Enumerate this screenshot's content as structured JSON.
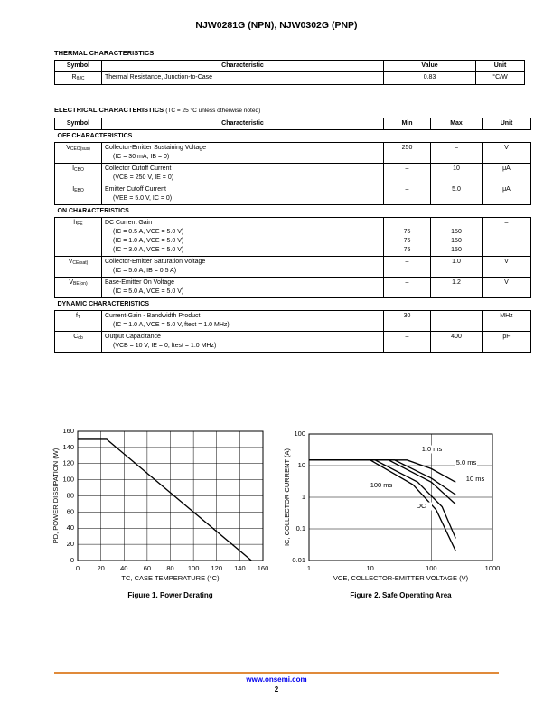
{
  "header": {
    "title": "NJW0281G (NPN), NJW0302G (PNP)"
  },
  "thermal": {
    "title": "THERMAL CHARACTERISTICS",
    "columns": [
      "Symbol",
      "Characteristic",
      "Value",
      "Unit"
    ],
    "rows": [
      {
        "symbol": {
          "main": "R",
          "sub": "θJC"
        },
        "characteristic": "Thermal Resistance, Junction-to-Case",
        "value": "0.83",
        "unit": "°C/W"
      }
    ]
  },
  "electrical": {
    "title": "ELECTRICAL CHARACTERISTICS",
    "note": "(TC = 25 °C unless otherwise noted)",
    "columns": [
      "Symbol",
      "Characteristic",
      "Min",
      "Max",
      "Unit"
    ],
    "sections": [
      {
        "title": "OFF CHARACTERISTICS",
        "rows": [
          {
            "symbol": {
              "main": "V",
              "sub": "CEO(sus)"
            },
            "characteristic": "Collector-Emitter Sustaining Voltage",
            "conditions": [
              "(IC = 30 mA, IB = 0)"
            ],
            "min": [
              "250"
            ],
            "max": [
              "–"
            ],
            "unit": "V"
          },
          {
            "symbol": {
              "main": "I",
              "sub": "CBO"
            },
            "characteristic": "Collector Cutoff Current",
            "conditions": [
              "(VCB = 250 V, IE = 0)"
            ],
            "min": [
              "–"
            ],
            "max": [
              "10"
            ],
            "unit": "μA"
          },
          {
            "symbol": {
              "main": "I",
              "sub": "EBO"
            },
            "characteristic": "Emitter Cutoff Current",
            "conditions": [
              "(VEB = 5.0 V, IC = 0)"
            ],
            "min": [
              "–"
            ],
            "max": [
              "5.0"
            ],
            "unit": "μA"
          }
        ]
      },
      {
        "title": "ON CHARACTERISTICS",
        "rows": [
          {
            "symbol": {
              "main": "h",
              "sub": "FE"
            },
            "characteristic": "DC Current Gain",
            "conditions": [
              "(IC = 0.5 A, VCE = 5.0 V)",
              "(IC = 1.0 A, VCE = 5.0 V)",
              "(IC = 3.0 A, VCE = 5.0 V)"
            ],
            "min": [
              "75",
              "75",
              "75"
            ],
            "max": [
              "150",
              "150",
              "150"
            ],
            "unit": "–"
          },
          {
            "symbol": {
              "main": "V",
              "sub": "CE(sat)"
            },
            "characteristic": "Collector-Emitter Saturation Voltage",
            "conditions": [
              "(IC = 5.0 A, IB = 0.5 A)"
            ],
            "min": [
              "–"
            ],
            "max": [
              "1.0"
            ],
            "unit": "V"
          },
          {
            "symbol": {
              "main": "V",
              "sub": "BE(on)"
            },
            "characteristic": "Base-Emitter On Voltage",
            "conditions": [
              "(IC = 5.0 A, VCE = 5.0 V)"
            ],
            "min": [
              "–"
            ],
            "max": [
              "1.2"
            ],
            "unit": "V"
          }
        ]
      },
      {
        "title": "DYNAMIC CHARACTERISTICS",
        "rows": [
          {
            "symbol": {
              "main": "f",
              "sub": "T"
            },
            "characteristic": "Current-Gain - Bandwidth Product",
            "conditions": [
              "(IC = 1.0 A, VCE = 5.0 V, ftest = 1.0 MHz)"
            ],
            "min": [
              "30"
            ],
            "max": [
              "–"
            ],
            "unit": "MHz"
          },
          {
            "symbol": {
              "main": "C",
              "sub": "ob"
            },
            "characteristic": "Output Capacitance",
            "conditions": [
              "(VCB = 10 V, IE = 0, ftest = 1.0 MHz)"
            ],
            "min": [
              "–"
            ],
            "max": [
              "400"
            ],
            "unit": "pF"
          }
        ]
      }
    ]
  },
  "figures": [
    {
      "type": "line",
      "title": "Figure 1. Power Derating",
      "xlabel": "TC, CASE TEMPERATURE (°C)",
      "ylabel": "PD, POWER DISSIPATION (W)",
      "xlim": [
        0,
        160
      ],
      "ylim": [
        0,
        160
      ],
      "xticks": [
        0,
        20,
        40,
        60,
        80,
        100,
        120,
        140,
        160
      ],
      "yticks": [
        0,
        20,
        40,
        60,
        80,
        100,
        120,
        140,
        160
      ],
      "grid": true,
      "series": [
        {
          "color": "#000000",
          "x": [
            0,
            25,
            150
          ],
          "values": [
            150,
            150,
            0
          ]
        }
      ]
    },
    {
      "type": "line",
      "title": "Figure 2. Safe Operating Area",
      "xlabel": "VCE, COLLECTOR-EMITTER VOLTAGE (V)",
      "ylabel": "IC, COLLECTOR CURRENT (A)",
      "xscale": "log",
      "yscale": "log",
      "xlim": [
        1,
        1000
      ],
      "ylim": [
        0.01,
        100
      ],
      "xticks": [
        1,
        10,
        100,
        1000
      ],
      "yticks": [
        0.01,
        0.1,
        1,
        10,
        100
      ],
      "grid": true,
      "series": [
        {
          "name": "1.0 ms",
          "color": "#000000",
          "x": [
            1,
            40,
            100,
            250
          ],
          "values": [
            15,
            15,
            8,
            3
          ]
        },
        {
          "name": "5.0 ms",
          "color": "#000000",
          "x": [
            1,
            25,
            100,
            250
          ],
          "values": [
            15,
            15,
            4,
            1.2
          ]
        },
        {
          "name": "10 ms",
          "color": "#000000",
          "x": [
            1,
            20,
            100,
            250
          ],
          "values": [
            15,
            15,
            3,
            0.6
          ]
        },
        {
          "name": "100 ms",
          "color": "#000000",
          "x": [
            1,
            12,
            60,
            150,
            250
          ],
          "values": [
            15,
            15,
            3,
            0.5,
            0.05
          ]
        },
        {
          "name": "DC",
          "color": "#000000",
          "x": [
            1,
            10,
            50,
            120,
            250
          ],
          "values": [
            15,
            15,
            2.5,
            0.4,
            0.02
          ]
        }
      ]
    }
  ],
  "footer": {
    "url": "www.onsemi.com",
    "page": "2"
  }
}
